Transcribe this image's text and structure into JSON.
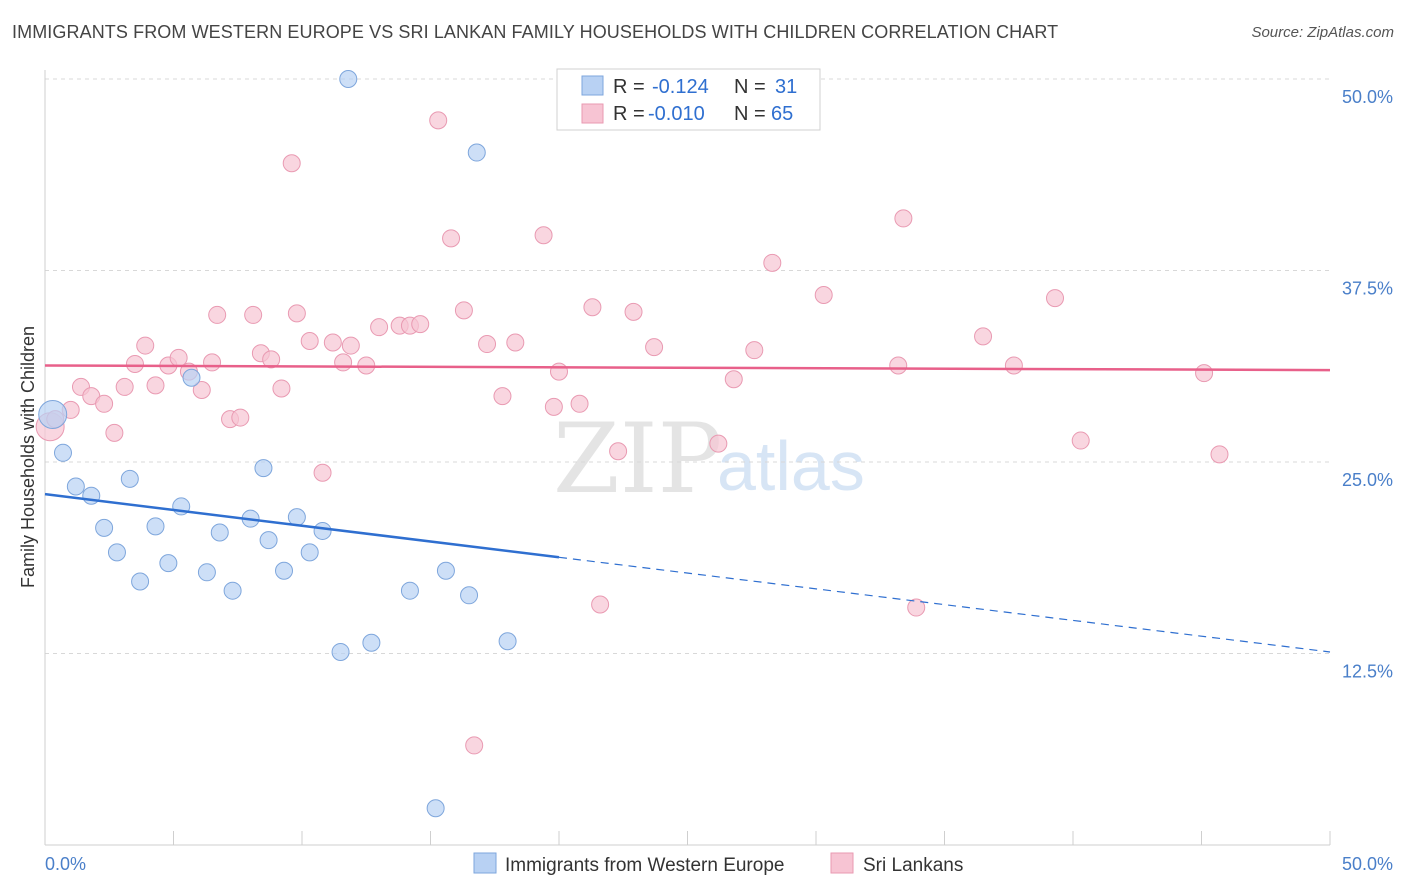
{
  "title": "IMMIGRANTS FROM WESTERN EUROPE VS SRI LANKAN FAMILY HOUSEHOLDS WITH CHILDREN CORRELATION CHART",
  "source": "Source: ZipAtlas.com",
  "watermark": {
    "zip": "ZIP",
    "atlas": "atlas"
  },
  "colors": {
    "blue_fill": "#b8d1f3",
    "blue_stroke": "#7ea6dc",
    "blue_line": "#2f6fd0",
    "pink_fill": "#f7c4d3",
    "pink_stroke": "#e99ab2",
    "pink_line": "#e8608a",
    "grid": "#d8d8d8",
    "tick_text": "#4a7fc9"
  },
  "legend": {
    "rows": [
      {
        "r_label": "R =",
        "r_value": "-0.124",
        "n_label": "N =",
        "n_value": "31"
      },
      {
        "r_label": "R =",
        "r_value": "-0.010",
        "n_label": "N =",
        "n_value": "65"
      }
    ]
  },
  "chart_data": {
    "type": "scatter",
    "title": "IMMIGRANTS FROM WESTERN EUROPE VS SRI LANKAN FAMILY HOUSEHOLDS WITH CHILDREN CORRELATION CHART",
    "xlabel": "",
    "ylabel": "Family Households with Children",
    "xlim": [
      0,
      50
    ],
    "ylim": [
      0,
      50
    ],
    "x_tick_labels": [
      "0.0%",
      "50.0%"
    ],
    "y_ticks": [
      12.5,
      25.0,
      37.5,
      50.0
    ],
    "y_tick_labels": [
      "12.5%",
      "25.0%",
      "37.5%",
      "50.0%"
    ],
    "grid": true,
    "series": [
      {
        "name": "Immigrants from Western Europe",
        "color": "#b8d1f3",
        "r": -0.124,
        "n": 31,
        "trend": {
          "x0": 0,
          "y0": 22.9,
          "x_solid_end": 20,
          "x1": 50,
          "y1": 12.6
        },
        "points": [
          [
            0.3,
            28.1
          ],
          [
            0.7,
            25.6
          ],
          [
            1.2,
            23.4
          ],
          [
            1.8,
            22.8
          ],
          [
            2.3,
            20.7
          ],
          [
            2.8,
            19.1
          ],
          [
            3.3,
            23.9
          ],
          [
            3.7,
            17.2
          ],
          [
            4.3,
            20.8
          ],
          [
            4.8,
            18.4
          ],
          [
            5.3,
            22.1
          ],
          [
            5.7,
            30.5
          ],
          [
            6.3,
            17.8
          ],
          [
            6.8,
            20.4
          ],
          [
            7.3,
            16.6
          ],
          [
            8.0,
            21.3
          ],
          [
            8.5,
            24.6
          ],
          [
            8.7,
            19.9
          ],
          [
            9.3,
            17.9
          ],
          [
            9.8,
            21.4
          ],
          [
            10.3,
            19.1
          ],
          [
            10.8,
            20.5
          ],
          [
            11.5,
            12.6
          ],
          [
            11.8,
            50.0
          ],
          [
            12.7,
            13.2
          ],
          [
            14.2,
            16.6
          ],
          [
            15.2,
            2.4
          ],
          [
            15.6,
            17.9
          ],
          [
            16.5,
            16.3
          ],
          [
            16.8,
            45.2
          ],
          [
            18.0,
            13.3
          ]
        ]
      },
      {
        "name": "Sri Lankans",
        "color": "#f7c4d3",
        "r": -0.01,
        "n": 65,
        "trend": {
          "x0": 0,
          "y0": 31.3,
          "x1": 50,
          "y1": 31.0
        },
        "points": [
          [
            0.2,
            27.3
          ],
          [
            0.4,
            27.8
          ],
          [
            1.0,
            28.4
          ],
          [
            1.4,
            29.9
          ],
          [
            1.8,
            29.3
          ],
          [
            2.3,
            28.8
          ],
          [
            2.7,
            26.9
          ],
          [
            3.1,
            29.9
          ],
          [
            3.5,
            31.4
          ],
          [
            3.9,
            32.6
          ],
          [
            4.3,
            30.0
          ],
          [
            4.8,
            31.3
          ],
          [
            5.2,
            31.8
          ],
          [
            5.6,
            30.9
          ],
          [
            6.1,
            29.7
          ],
          [
            6.5,
            31.5
          ],
          [
            6.7,
            34.6
          ],
          [
            7.2,
            27.8
          ],
          [
            7.6,
            27.9
          ],
          [
            8.1,
            34.6
          ],
          [
            8.4,
            32.1
          ],
          [
            8.8,
            31.7
          ],
          [
            9.2,
            29.8
          ],
          [
            9.6,
            44.5
          ],
          [
            9.8,
            34.7
          ],
          [
            10.3,
            32.9
          ],
          [
            10.8,
            24.3
          ],
          [
            11.2,
            32.8
          ],
          [
            11.6,
            31.5
          ],
          [
            11.9,
            32.6
          ],
          [
            12.5,
            31.3
          ],
          [
            13.0,
            33.8
          ],
          [
            13.8,
            33.9
          ],
          [
            14.2,
            33.9
          ],
          [
            14.6,
            34.0
          ],
          [
            15.3,
            47.3
          ],
          [
            15.8,
            39.6
          ],
          [
            16.3,
            34.9
          ],
          [
            16.7,
            6.5
          ],
          [
            17.2,
            32.7
          ],
          [
            17.8,
            29.3
          ],
          [
            18.3,
            32.8
          ],
          [
            19.4,
            39.8
          ],
          [
            19.8,
            28.6
          ],
          [
            20.0,
            30.9
          ],
          [
            20.8,
            28.8
          ],
          [
            21.3,
            35.1
          ],
          [
            21.6,
            15.7
          ],
          [
            22.3,
            25.7
          ],
          [
            22.9,
            34.8
          ],
          [
            23.7,
            32.5
          ],
          [
            26.2,
            26.2
          ],
          [
            26.8,
            30.4
          ],
          [
            27.6,
            32.3
          ],
          [
            28.3,
            38.0
          ],
          [
            30.3,
            35.9
          ],
          [
            33.2,
            31.3
          ],
          [
            33.4,
            40.9
          ],
          [
            33.9,
            15.5
          ],
          [
            36.5,
            33.2
          ],
          [
            37.7,
            31.3
          ],
          [
            39.3,
            35.7
          ],
          [
            40.3,
            26.4
          ],
          [
            45.1,
            30.8
          ],
          [
            45.7,
            25.5
          ]
        ]
      }
    ]
  }
}
